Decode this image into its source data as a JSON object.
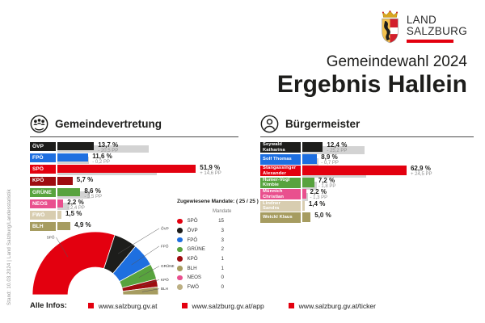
{
  "header": {
    "logo": {
      "line1": "LAND",
      "line2": "SALZBURG"
    },
    "subtitle": "Gemeindewahl 2024",
    "title": "Ergebnis Hallein"
  },
  "side_note": "Stand: 10.03.2024 | Land Salzburg/Landesstatistik",
  "colors": {
    "accent_red": "#e3000f",
    "previous_bar_gray": "#d3d3d3",
    "text_dark": "#1d1d1b",
    "text_gray": "#8f8f8f"
  },
  "chart_data": [
    {
      "type": "bar",
      "title": "Gemeindevertretung",
      "unit": "%",
      "xlim": [
        0,
        55
      ],
      "rows": [
        {
          "label": "ÖVP",
          "value": 13.7,
          "value_label": "13,7 %",
          "change_label": "- 20,5 PP",
          "previous": 34.2,
          "color": "#1d1d1b"
        },
        {
          "label": "FPÖ",
          "value": 11.6,
          "value_label": "11,6 %",
          "change_label": "- 0,2 PP",
          "previous": 11.8,
          "color": "#1e6fe0"
        },
        {
          "label": "SPÖ",
          "value": 51.9,
          "value_label": "51,9 %",
          "change_label": "+ 14,6 PP",
          "previous": 37.3,
          "color": "#e3000f"
        },
        {
          "label": "KPÖ",
          "value": 5.7,
          "value_label": "5,7 %",
          "change_label": null,
          "previous": null,
          "color": "#9e0c10"
        },
        {
          "label": "GRÜNE",
          "value": 8.6,
          "value_label": "8,6 %",
          "change_label": "- 3,5 PP",
          "previous": 12.1,
          "color": "#58a33e"
        },
        {
          "label": "NEOS",
          "value": 2.2,
          "value_label": "2,2 %",
          "change_label": "- 2,4 PP",
          "previous": 4.6,
          "color": "#e9508e"
        },
        {
          "label": "FWÖ",
          "value": 1.5,
          "value_label": "1,5 %",
          "change_label": null,
          "previous": null,
          "color": "#d8cdb0"
        },
        {
          "label": "BLH",
          "value": 4.9,
          "value_label": "4,9 %",
          "change_label": null,
          "previous": null,
          "color": "#a69c60"
        }
      ]
    },
    {
      "type": "bar",
      "title": "Bürgermeister",
      "unit": "%",
      "xlim": [
        0,
        70
      ],
      "rows": [
        {
          "label": "Seywald\nKatharina",
          "value": 12.4,
          "value_label": "12,4 %",
          "change_label": "- 25,2 PP",
          "previous": 37.6,
          "color": "#1d1d1b"
        },
        {
          "label": "Solf Thomas",
          "value": 8.9,
          "value_label": "8,9 %",
          "change_label": "- 0,7 PP",
          "previous": 9.6,
          "color": "#1e6fe0"
        },
        {
          "label": "Stangassinger\nAlexander",
          "value": 62.9,
          "value_label": "62,9 %",
          "change_label": "+ 24,5 PP",
          "previous": 38.4,
          "color": "#e3000f"
        },
        {
          "label": "Humer-Vogl\nKimbie",
          "value": 7.2,
          "value_label": "7,2 %",
          "change_label": "- 1,8 PP",
          "previous": 9.0,
          "color": "#58a33e"
        },
        {
          "label": "Münnich\nChristian",
          "value": 2.2,
          "value_label": "2,2 %",
          "change_label": "- 1,3 PP",
          "previous": 3.5,
          "color": "#e9508e"
        },
        {
          "label": "Lindner\nSandra",
          "value": 1.4,
          "value_label": "1,4 %",
          "change_label": null,
          "previous": null,
          "color": "#d8cdb0"
        },
        {
          "label": "Weickl Klaus",
          "value": 5.0,
          "value_label": "5,0 %",
          "change_label": null,
          "previous": null,
          "color": "#a69c60"
        }
      ]
    },
    {
      "type": "pie",
      "variant": "half-donut",
      "title": "Zugewiesene Mandate: ( 25 / 25 )",
      "column_header": "Mandate",
      "total": 25,
      "slices": [
        {
          "label": "SPÖ",
          "value": 15,
          "color": "#e3000f"
        },
        {
          "label": "ÖVP",
          "value": 3,
          "color": "#1d1d1b"
        },
        {
          "label": "FPÖ",
          "value": 3,
          "color": "#1e6fe0"
        },
        {
          "label": "GRÜNE",
          "value": 2,
          "color": "#58a33e"
        },
        {
          "label": "KPÖ",
          "value": 1,
          "color": "#9e0c10"
        },
        {
          "label": "BLH",
          "value": 1,
          "color": "#a69c60"
        },
        {
          "label": "NEOS",
          "value": 0,
          "color": "#e9508e"
        },
        {
          "label": "FWÖ",
          "value": 0,
          "color": "#bdb084"
        }
      ]
    }
  ],
  "footer": {
    "label": "Alle Infos:",
    "links": [
      {
        "text": "www.salzburg.gv.at"
      },
      {
        "text": "www.salzburg.gv.at/app"
      },
      {
        "text": "www.salzburg.gv.at/ticker"
      }
    ]
  }
}
